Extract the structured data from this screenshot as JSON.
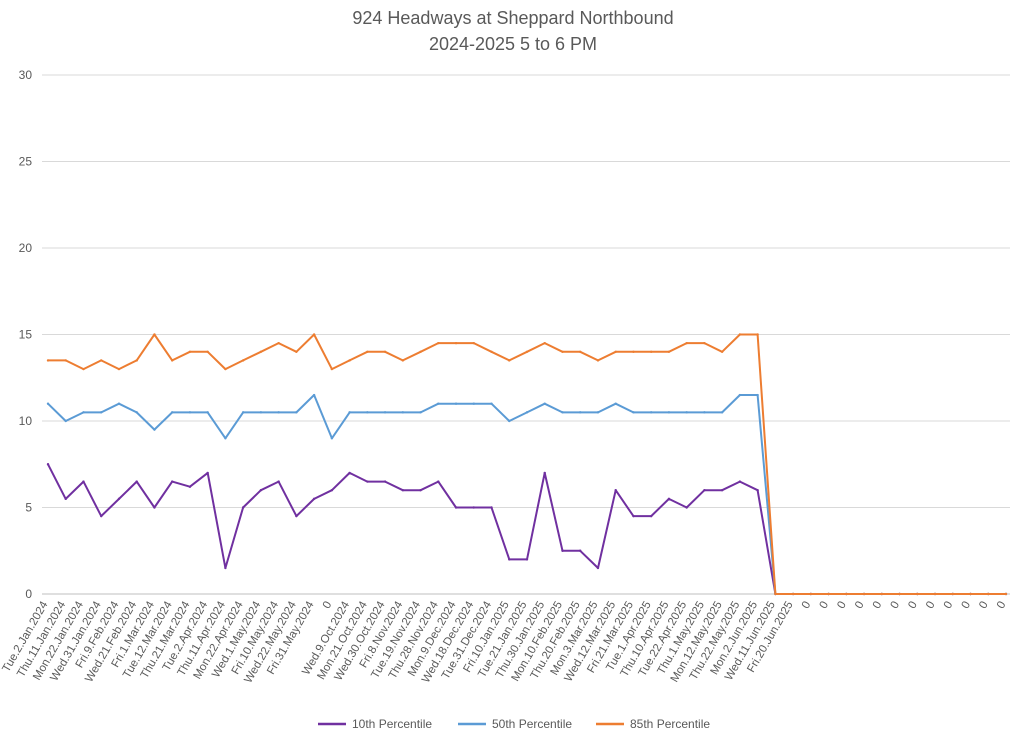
{
  "chart_data": {
    "type": "line",
    "title": "924  Headways at Sheppard Northbound",
    "subtitle": "2024-2025 5 to 6 PM",
    "xlabel": "",
    "ylabel": "",
    "ylim": [
      0,
      30
    ],
    "yticks": [
      "0",
      "5",
      "10",
      "15",
      "20",
      "25",
      "30"
    ],
    "grid": true,
    "legend_position": "bottom",
    "categories": [
      "Tue.2.Jan.2024",
      "Thu.11.Jan.2024",
      "Mon.22.Jan.2024",
      "Wed.31.Jan.2024",
      "Fri.9.Feb.2024",
      "Wed.21.Feb.2024",
      "Fri.1.Mar.2024",
      "Tue.12.Mar.2024",
      "Thu.21.Mar.2024",
      "Tue.2.Apr.2024",
      "Thu.11.Apr.2024",
      "Mon.22.Apr.2024",
      "Wed.1.May.2024",
      "Fri.10.May.2024",
      "Wed.22.May.2024",
      "Fri.31.May.2024",
      "0",
      "Wed.9.Oct.2024",
      "Mon.21.Oct.2024",
      "Wed.30.Oct.2024",
      "Fri.8.Nov.2024",
      "Tue.19.Nov.2024",
      "Thu.28.Nov.2024",
      "Mon.9.Dec.2024",
      "Wed.18.Dec.2024",
      "Tue.31.Dec.2024",
      "Fri.10.Jan.2025",
      "Tue.21.Jan.2025",
      "Thu.30.Jan.2025",
      "Mon.10.Feb.2025",
      "Thu.20.Feb.2025",
      "Mon.3.Mar.2025",
      "Wed.12.Mar.2025",
      "Fri.21.Mar.2025",
      "Tue.1.Apr.2025",
      "Thu.10.Apr.2025",
      "Tue.22.Apr.2025",
      "Thu.1.May.2025",
      "Mon.12.May.2025",
      "Thu.22.May.2025",
      "Mon.2.Jun.2025",
      "Wed.11.Jun.2025",
      "Fri.20.Jun.2025",
      "0",
      "0",
      "0",
      "0",
      "0",
      "0",
      "0",
      "0",
      "0",
      "0",
      "0",
      "0"
    ],
    "series": [
      {
        "name": "10th Percentile",
        "color": "#7030A0",
        "values": [
          7.5,
          5.5,
          6.5,
          4.5,
          5.5,
          6.5,
          5.0,
          6.5,
          6.2,
          7.0,
          1.5,
          5.0,
          6.0,
          6.5,
          4.5,
          5.5,
          6.0,
          7.0,
          6.5,
          6.5,
          6.0,
          6.0,
          6.5,
          5.0,
          5.0,
          5.0,
          2.0,
          2.0,
          7.0,
          2.5,
          2.5,
          1.5,
          6.0,
          4.5,
          4.5,
          5.5,
          5.0,
          6.0,
          6.0,
          6.5,
          6.0,
          0,
          0,
          0,
          0,
          0,
          0,
          0,
          0,
          0,
          0,
          0,
          0,
          0,
          0
        ]
      },
      {
        "name": "50th Percentile",
        "color": "#5B9BD5",
        "values": [
          11.0,
          10.0,
          10.5,
          10.5,
          11.0,
          10.5,
          9.5,
          10.5,
          10.5,
          10.5,
          9.0,
          10.5,
          10.5,
          10.5,
          10.5,
          11.5,
          9.0,
          10.5,
          10.5,
          10.5,
          10.5,
          10.5,
          11.0,
          11.0,
          11.0,
          11.0,
          10.0,
          10.5,
          11.0,
          10.5,
          10.5,
          10.5,
          11.0,
          10.5,
          10.5,
          10.5,
          10.5,
          10.5,
          10.5,
          11.5,
          11.5,
          0,
          0,
          0,
          0,
          0,
          0,
          0,
          0,
          0,
          0,
          0,
          0,
          0,
          0
        ]
      },
      {
        "name": "85th Percentile",
        "color": "#ED7D31",
        "values": [
          13.5,
          13.5,
          13.0,
          13.5,
          13.0,
          13.5,
          15.0,
          13.5,
          14.0,
          14.0,
          13.0,
          13.5,
          14.0,
          14.5,
          14.0,
          15.0,
          13.0,
          13.5,
          14.0,
          14.0,
          13.5,
          14.0,
          14.5,
          14.5,
          14.5,
          14.0,
          13.5,
          14.0,
          14.5,
          14.0,
          14.0,
          13.5,
          14.0,
          14.0,
          14.0,
          14.0,
          14.5,
          14.5,
          14.0,
          15.0,
          15.0,
          0,
          0,
          0,
          0,
          0,
          0,
          0,
          0,
          0,
          0,
          0,
          0,
          0,
          0
        ]
      }
    ]
  }
}
